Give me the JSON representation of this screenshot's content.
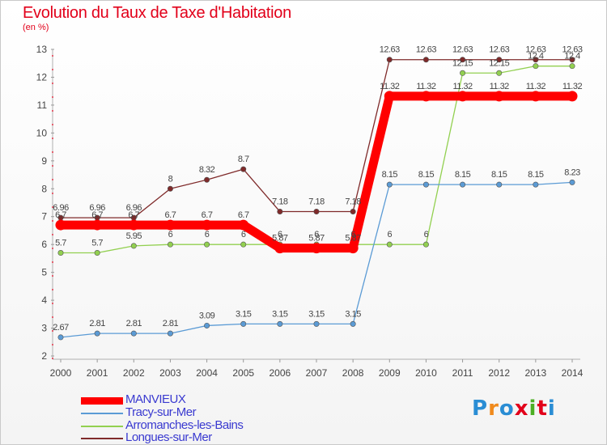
{
  "title": "Evolution du Taux de Taxe d'Habitation",
  "subtitle": "(en %)",
  "logo": {
    "text": "Proxiti",
    "colors": [
      "#2a8dd4",
      "#f08a1c",
      "#2a8dd4",
      "#e2001a",
      "#4caf24",
      "#e2001a",
      "#2a8dd4"
    ]
  },
  "chart_data": {
    "type": "line",
    "x": [
      "2000",
      "2001",
      "2002",
      "2003",
      "2004",
      "2005",
      "2006",
      "2007",
      "2008",
      "2009",
      "2010",
      "2011",
      "2012",
      "2013",
      "2014"
    ],
    "ylim": [
      2,
      13
    ],
    "yticks": [
      "2",
      "3",
      "4",
      "5",
      "6",
      "7",
      "8",
      "9",
      "10",
      "11",
      "12",
      "13"
    ],
    "grid": false,
    "legend": "bottom-left",
    "series": [
      {
        "name": "MANVIEUX",
        "color": "#ff0000",
        "values": [
          6.7,
          6.7,
          6.7,
          6.7,
          6.7,
          6.7,
          5.87,
          5.87,
          5.87,
          11.32,
          11.32,
          11.32,
          11.32,
          11.32,
          11.32
        ],
        "labels": [
          "6.7",
          "6.7",
          "6.7",
          "6.7",
          "6.7",
          "6.7",
          "5.87",
          "5.87",
          "5.87",
          "11.32",
          "11.32",
          "11.32",
          "11.32",
          "11.32",
          "11.32"
        ]
      },
      {
        "name": "Tracy-sur-Mer",
        "color": "#5b9bd5",
        "values": [
          2.67,
          2.81,
          2.81,
          2.81,
          3.09,
          3.15,
          3.15,
          3.15,
          3.15,
          8.15,
          8.15,
          8.15,
          8.15,
          8.15,
          8.23
        ],
        "labels": [
          "2.67",
          "2.81",
          "2.81",
          "2.81",
          "3.09",
          "3.15",
          "3.15",
          "3.15",
          "3.15",
          "8.15",
          "8.15",
          "8.15",
          "8.15",
          "8.15",
          "8.23"
        ]
      },
      {
        "name": "Arromanches-les-Bains",
        "color": "#92d050",
        "values": [
          5.7,
          5.7,
          5.95,
          6,
          6,
          6,
          6,
          6,
          6,
          6,
          6,
          12.15,
          12.15,
          12.4,
          12.4
        ],
        "labels": [
          "5.7",
          "5.7",
          "5.95",
          "6",
          "6",
          "6",
          "6",
          "6",
          "6",
          "6",
          "6",
          "12.15",
          "12.15",
          "12.4",
          "12.4"
        ]
      },
      {
        "name": "Longues-sur-Mer",
        "color": "#7f2a2a",
        "values": [
          6.96,
          6.96,
          6.96,
          8,
          8.32,
          8.7,
          7.18,
          7.18,
          7.18,
          12.63,
          12.63,
          12.63,
          12.63,
          12.63,
          12.63
        ],
        "labels": [
          "6.96",
          "6.96",
          "6.96",
          "8",
          "8.32",
          "8.7",
          "7.18",
          "7.18",
          "7.18",
          "12.63",
          "12.63",
          "12.63",
          "12.63",
          "12.63",
          "12.63"
        ]
      }
    ]
  }
}
